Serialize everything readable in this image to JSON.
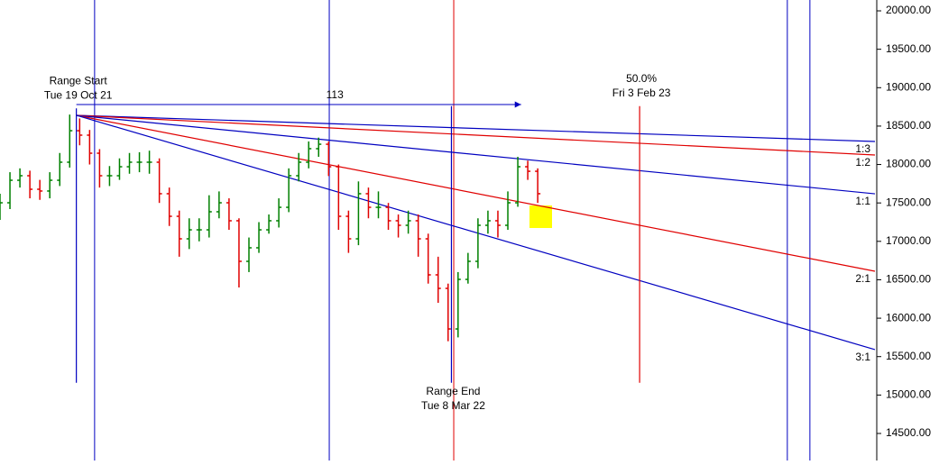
{
  "chart_data": {
    "type": "ohlc",
    "x": [
      0,
      3,
      6,
      9,
      12,
      15,
      18,
      21,
      24,
      27,
      30,
      33,
      36,
      39,
      42,
      45,
      48,
      51,
      54,
      57,
      60,
      63,
      66,
      69,
      72,
      75,
      78,
      81,
      84,
      87,
      90,
      93,
      96,
      99,
      102,
      105,
      108,
      111,
      114,
      117,
      120,
      123,
      126,
      129,
      132,
      135,
      138,
      141,
      144,
      147,
      150,
      153,
      156,
      159,
      162
    ],
    "open": [
      17400,
      17502,
      17795,
      17854,
      17678,
      17655,
      17795,
      18030,
      18440,
      18382,
      18147,
      17854,
      17854,
      17971,
      18030,
      18030,
      18030,
      17620,
      17326,
      17033,
      17150,
      17150,
      17385,
      17502,
      17268,
      16740,
      16916,
      17150,
      17268,
      17443,
      17854,
      18030,
      18206,
      18264,
      17971,
      17326,
      17033,
      17620,
      17443,
      17443,
      17268,
      17209,
      17268,
      17033,
      16564,
      16388,
      15860,
      16505,
      16740,
      17209,
      17268,
      17209,
      17502,
      17971,
      17912
    ],
    "high": [
      17620,
      17900,
      17950,
      17920,
      17800,
      17900,
      18150,
      18650,
      18600,
      18450,
      18200,
      17980,
      18080,
      18150,
      18160,
      18180,
      18080,
      17700,
      17400,
      17300,
      17300,
      17600,
      17650,
      17560,
      17300,
      17050,
      17250,
      17350,
      17560,
      17950,
      18150,
      18300,
      18350,
      18300,
      18000,
      17400,
      17780,
      17700,
      17650,
      17500,
      17350,
      17400,
      17350,
      17100,
      16800,
      16450,
      16600,
      16850,
      17300,
      17400,
      17400,
      17650,
      18100,
      18050,
      17950
    ],
    "low": [
      17280,
      17420,
      17700,
      17560,
      17540,
      17560,
      17720,
      17960,
      18250,
      18000,
      17700,
      17720,
      17800,
      17880,
      17900,
      17880,
      17500,
      17200,
      16800,
      16900,
      17000,
      17050,
      17300,
      17150,
      16400,
      16600,
      16850,
      17100,
      17180,
      17380,
      17780,
      17950,
      18100,
      17850,
      17150,
      16850,
      16950,
      17300,
      17300,
      17150,
      17050,
      17100,
      16800,
      16450,
      16200,
      15700,
      15750,
      16450,
      16650,
      17100,
      17050,
      17150,
      17450,
      17800,
      17500
    ],
    "close": [
      17502,
      17795,
      17854,
      17678,
      17655,
      17795,
      18030,
      18440,
      18382,
      18147,
      17854,
      17854,
      17971,
      18030,
      18030,
      18030,
      17620,
      17326,
      17033,
      17150,
      17150,
      17385,
      17502,
      17268,
      16740,
      16916,
      17150,
      17268,
      17443,
      17854,
      18030,
      18206,
      18264,
      17971,
      17326,
      17033,
      17620,
      17443,
      17443,
      17268,
      17209,
      17268,
      17033,
      16564,
      16388,
      15860,
      16505,
      16740,
      17209,
      17268,
      17209,
      17502,
      17971,
      17912,
      17620
    ],
    "up_color": "#008000",
    "down_color": "#e00000",
    "xlim": [
      0,
      263.6
    ],
    "ylim": [
      14148,
      20141
    ],
    "yticks": [
      {
        "value": 14500,
        "label": "14500.00"
      },
      {
        "value": 15000,
        "label": "15000.00"
      },
      {
        "value": 15500,
        "label": "15500.00"
      },
      {
        "value": 16000,
        "label": "16000.00"
      },
      {
        "value": 16500,
        "label": "16500.00"
      },
      {
        "value": 17000,
        "label": "17000.00"
      },
      {
        "value": 17500,
        "label": "17500.00"
      },
      {
        "value": 18000,
        "label": "18000.00"
      },
      {
        "value": 18500,
        "label": "18500.00"
      },
      {
        "value": 19000,
        "label": "19000.00"
      },
      {
        "value": 19500,
        "label": "19500.00"
      },
      {
        "value": 20000,
        "label": "20000.00"
      }
    ],
    "vertical_lines": [
      {
        "x": 28.5,
        "color": "#0000c0"
      },
      {
        "x": 99.2,
        "color": "#0000c0"
      },
      {
        "x": 136.7,
        "color": "#e00000"
      },
      {
        "x": 237.2,
        "color": "#0000c0"
      },
      {
        "x": 244,
        "color": "#0000c0"
      }
    ],
    "markers": [
      {
        "labels": [
          "Range Start",
          "Tue 19 Oct 21"
        ],
        "x": 23,
        "top": 18730,
        "bottom": 15160,
        "color": "#0000c0",
        "label_position": "above"
      },
      {
        "labels": [
          "Range End",
          "Tue 8 Mar 22"
        ],
        "x": 136,
        "top": 18760,
        "bottom": 15160,
        "color": "#0000c0",
        "label_position": "below"
      },
      {
        "labels": [
          "50.0%",
          "Fri 3 Feb 23"
        ],
        "x": 192.7,
        "top": 18760,
        "bottom": 15160,
        "color": "#e00000",
        "label_position": "above"
      }
    ],
    "arrow": {
      "label": 113,
      "x": [
        23,
        157
      ],
      "y": 18780,
      "color": "#0000c0"
    },
    "fan": {
      "origin": {
        "x": 23,
        "y": 18640
      },
      "lines": [
        {
          "label": "1:3",
          "color": "#0000c0",
          "end": {
            "x": 263.6,
            "y": 18300
          }
        },
        {
          "label": "1:2",
          "color": "#e00000",
          "end": {
            "x": 263.6,
            "y": 18124
          }
        },
        {
          "label": "1:1",
          "color": "#0000c0",
          "end": {
            "x": 263.6,
            "y": 17619
          }
        },
        {
          "label": "2:1",
          "color": "#e00000",
          "end": {
            "x": 263.6,
            "y": 16611
          }
        },
        {
          "label": "3:1",
          "color": "#0000c0",
          "end": {
            "x": 263.6,
            "y": 15591
          }
        }
      ]
    }
  }
}
